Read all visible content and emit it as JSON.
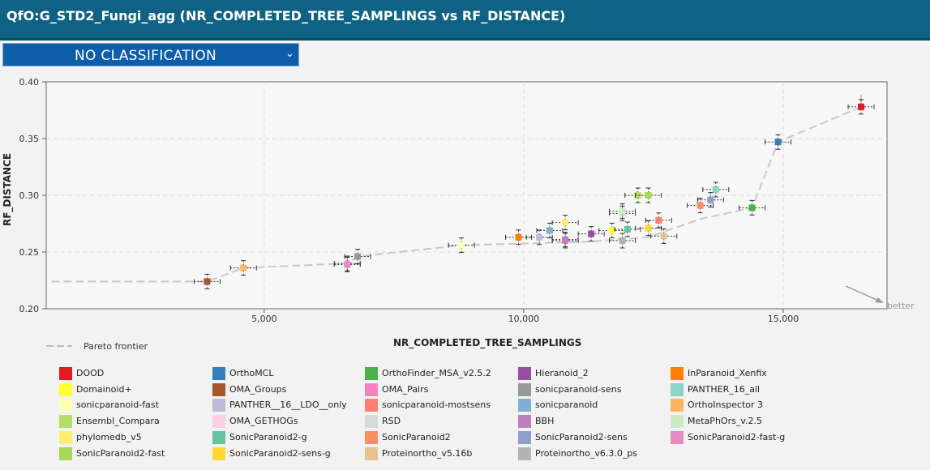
{
  "header": {
    "title": "QfO:G_STD2_Fungi_agg (NR_COMPLETED_TREE_SAMPLINGS vs RF_DISTANCE)"
  },
  "classification": {
    "selected": "NO CLASSIFICATION",
    "chevron_icon": "chevron-down-icon"
  },
  "colors": {
    "header_bg": "#0f6283",
    "select_bg": "#0e5da8",
    "pareto_line": "#c8c8c8"
  },
  "chart_data": {
    "type": "scatter",
    "xlabel": "NR_COMPLETED_TREE_SAMPLINGS",
    "ylabel": "RF_DISTANCE",
    "xlim": [
      800,
      17000
    ],
    "ylim": [
      0.2,
      0.4
    ],
    "xticks": [
      5000,
      10000,
      15000
    ],
    "xtick_labels": [
      "5,000",
      "10,000",
      "15,000"
    ],
    "yticks": [
      0.2,
      0.25,
      0.3,
      0.35,
      0.4
    ],
    "ytick_labels": [
      "0.20",
      "0.25",
      "0.30",
      "0.35",
      "0.40"
    ],
    "grid": true,
    "better_label": "better",
    "pareto_label": "Pareto frontier",
    "pareto_frontier": [
      [
        900,
        0.224
      ],
      [
        3900,
        0.224
      ],
      [
        4600,
        0.236
      ],
      [
        6600,
        0.24
      ],
      [
        6800,
        0.246
      ],
      [
        8800,
        0.256
      ],
      [
        11200,
        0.259
      ],
      [
        12400,
        0.263
      ],
      [
        13400,
        0.279
      ],
      [
        14400,
        0.289
      ],
      [
        14900,
        0.347
      ],
      [
        16500,
        0.378
      ],
      [
        16500,
        0.392
      ]
    ],
    "series": [
      {
        "name": "DOOD",
        "color": "#e41a1c",
        "x": 16500,
        "y": 0.378
      },
      {
        "name": "OrthoMCL",
        "color": "#377eb8",
        "x": 14900,
        "y": 0.347
      },
      {
        "name": "OrthoFinder_MSA_v2.5.2",
        "color": "#4daf4a",
        "x": 14400,
        "y": 0.289
      },
      {
        "name": "Hieranoid_2",
        "color": "#984ea3",
        "x": 11300,
        "y": 0.266
      },
      {
        "name": "InParanoid_Xenfix",
        "color": "#ff7f00",
        "x": 9900,
        "y": 0.263
      },
      {
        "name": "Domainoid+",
        "color": "#ffff33",
        "x": 11700,
        "y": 0.269
      },
      {
        "name": "OMA_Groups",
        "color": "#a65628",
        "x": 3900,
        "y": 0.224
      },
      {
        "name": "OMA_Pairs",
        "color": "#f781bf",
        "x": 10800,
        "y": 0.26
      },
      {
        "name": "sonicparanoid-sens",
        "color": "#999999",
        "x": 6800,
        "y": 0.246
      },
      {
        "name": "PANTHER_16_all",
        "color": "#8dd3c7",
        "x": 13700,
        "y": 0.305
      },
      {
        "name": "sonicparanoid-fast",
        "color": "#ffffb3",
        "x": 8800,
        "y": 0.256
      },
      {
        "name": "PANTHER__16__LDO__only",
        "color": "#bebada",
        "x": 10300,
        "y": 0.263
      },
      {
        "name": "sonicparanoid-mostsens",
        "color": "#fb8072",
        "x": 12600,
        "y": 0.278
      },
      {
        "name": "sonicparanoid",
        "color": "#80b1d3",
        "x": 10500,
        "y": 0.269
      },
      {
        "name": "OrthoInspector 3",
        "color": "#fdb462",
        "x": 4600,
        "y": 0.236
      },
      {
        "name": "Ensembl_Compara",
        "color": "#b3de69",
        "x": 12200,
        "y": 0.3
      },
      {
        "name": "OMA_GETHOGs",
        "color": "#fccde5",
        "x": 6600,
        "y": 0.24
      },
      {
        "name": "RSD",
        "color": "#d9d9d9",
        "x": 11900,
        "y": 0.284
      },
      {
        "name": "BBH",
        "color": "#bc80bd",
        "x": 10800,
        "y": 0.261
      },
      {
        "name": "MetaPhOrs_v.2.5",
        "color": "#ccebc5",
        "x": 11900,
        "y": 0.286
      },
      {
        "name": "phylomedb_v5",
        "color": "#ffed6f",
        "x": 10800,
        "y": 0.276
      },
      {
        "name": "SonicParanoid2-g",
        "color": "#66c2a5",
        "x": 12000,
        "y": 0.27
      },
      {
        "name": "SonicParanoid2",
        "color": "#fc8d62",
        "x": 13400,
        "y": 0.291
      },
      {
        "name": "SonicParanoid2-sens",
        "color": "#8da0cb",
        "x": 13600,
        "y": 0.296
      },
      {
        "name": "SonicParanoid2-fast-g",
        "color": "#e78ac3",
        "x": 6600,
        "y": 0.239
      },
      {
        "name": "SonicParanoid2-fast",
        "color": "#a6d854",
        "x": 12400,
        "y": 0.3
      },
      {
        "name": "SonicParanoid2-sens-g",
        "color": "#ffd92f",
        "x": 12400,
        "y": 0.271
      },
      {
        "name": "Proteinortho_v5.16b",
        "color": "#e5c494",
        "x": 12700,
        "y": 0.264
      },
      {
        "name": "Proteinortho_v6.3.0_ps",
        "color": "#b3b3b3",
        "x": 11900,
        "y": 0.26
      }
    ]
  }
}
